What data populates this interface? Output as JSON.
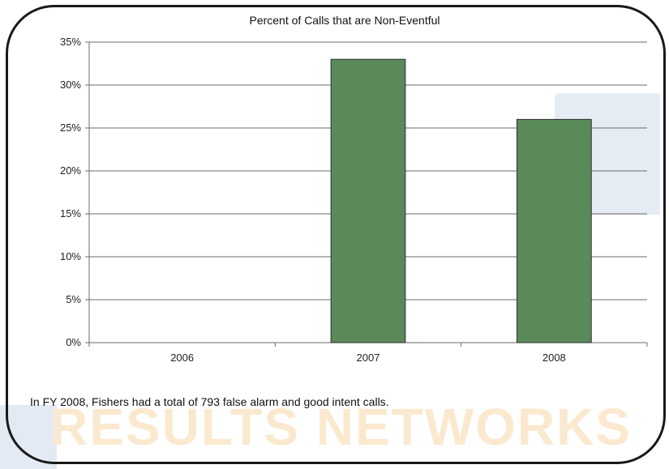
{
  "colors": {
    "bar_fill": "#5a8a5a",
    "bar_stroke": "#2f2f2f",
    "grid": "#6b6b6b",
    "frame": "#1a1a1a",
    "watermark_text": "#fbe9cf",
    "watermark_shape": "#e6ecf4"
  },
  "watermark": {
    "text": "RESULTS NETWORKS"
  },
  "caption": "In FY 2008, Fishers had a total of 793 false alarm and good intent calls.",
  "chart_data": {
    "type": "bar",
    "title": "Percent of Calls that are Non-Eventful",
    "xlabel": "",
    "ylabel": "",
    "categories": [
      "2006",
      "2007",
      "2008"
    ],
    "values": [
      0,
      33,
      26
    ],
    "ylim": [
      0,
      35
    ],
    "yticks": [
      "0%",
      "5%",
      "10%",
      "15%",
      "20%",
      "25%",
      "30%",
      "35%"
    ],
    "grid": true,
    "legend": "none"
  }
}
